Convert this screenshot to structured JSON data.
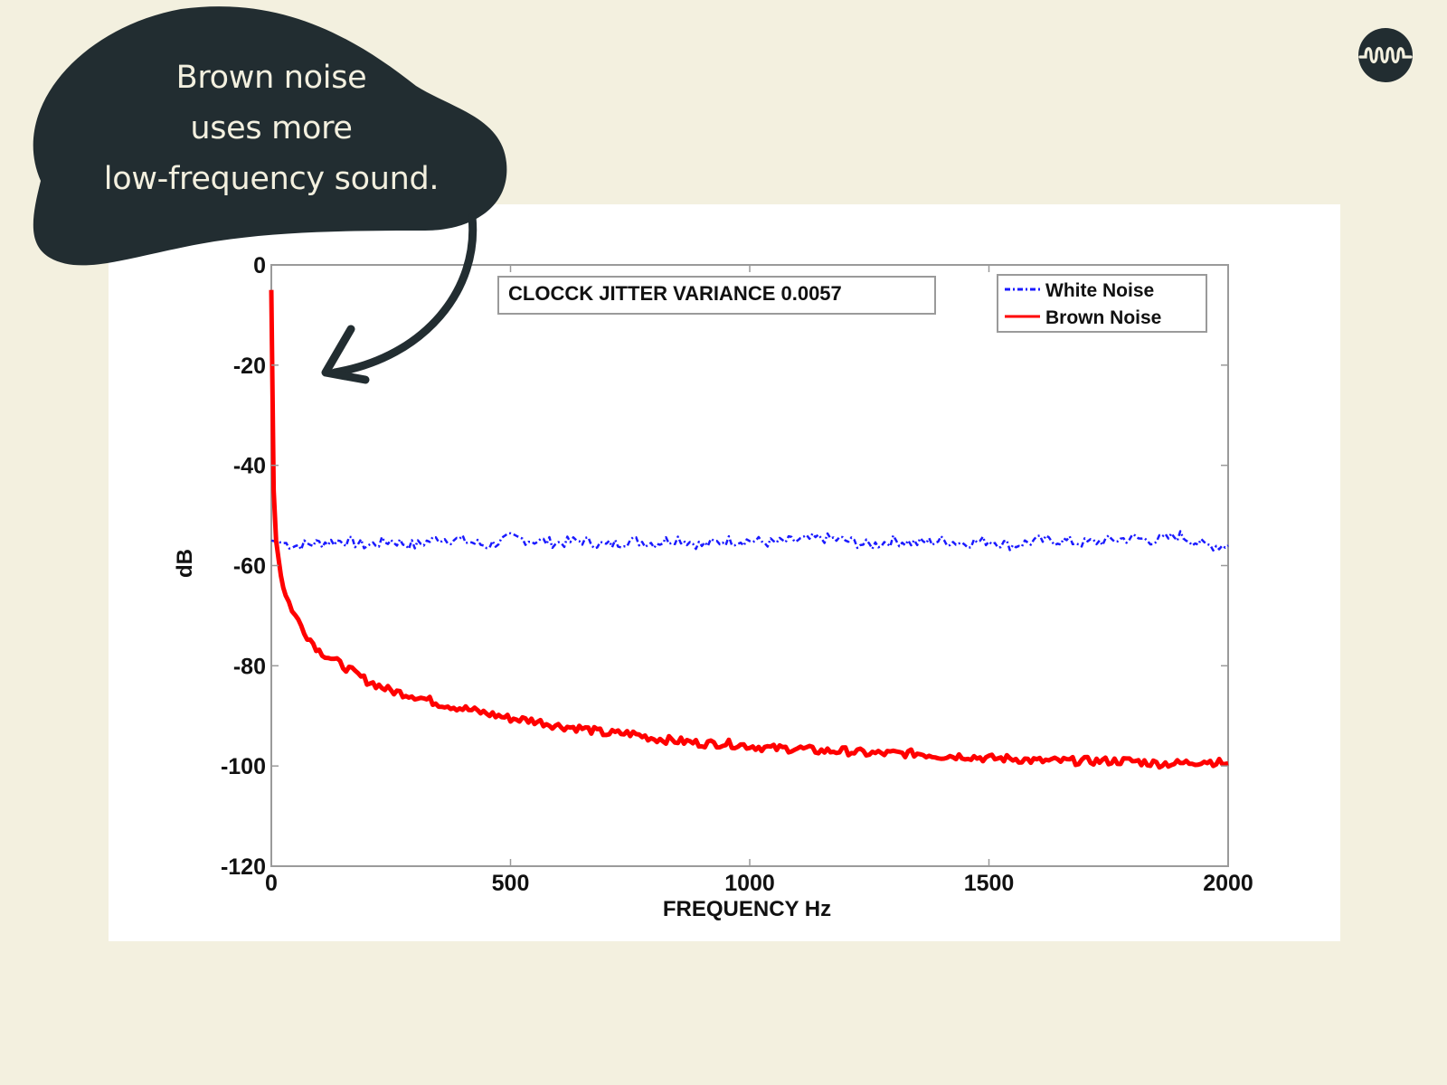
{
  "callout": {
    "lines": [
      "Brown noise",
      "uses more",
      "low-frequency sound."
    ],
    "bubble_color": "#222d31",
    "text_color": "#f3f0df"
  },
  "logo": {
    "icon": "sound-wave-icon",
    "color": "#222d31"
  },
  "colors": {
    "background": "#f3f0df",
    "card": "#ffffff",
    "white_noise": "#1a1aff",
    "brown_noise": "#ff0000",
    "axis": "#9a9a9a"
  },
  "chart_data": {
    "type": "line",
    "title": "CLOCCK JITTER VARIANCE 0.0057",
    "xlabel": "FREQUENCY Hz",
    "ylabel": "dB",
    "xlim": [
      0,
      2000
    ],
    "ylim": [
      -120,
      0
    ],
    "xticks": [
      "0",
      "500",
      "1000",
      "1500",
      "2000"
    ],
    "yticks": [
      "0",
      "-20",
      "-40",
      "-60",
      "-80",
      "-100",
      "-120"
    ],
    "grid": false,
    "legend_position": "upper right",
    "series": [
      {
        "name": "White Noise",
        "style": "dash-dot",
        "color": "#1a1aff",
        "x": [
          0,
          50,
          100,
          150,
          200,
          250,
          300,
          350,
          400,
          450,
          500,
          550,
          600,
          650,
          700,
          750,
          800,
          850,
          900,
          950,
          1000,
          1050,
          1100,
          1150,
          1200,
          1250,
          1300,
          1350,
          1400,
          1450,
          1500,
          1550,
          1600,
          1650,
          1700,
          1750,
          1800,
          1850,
          1900,
          1950,
          2000
        ],
        "values": [
          -55,
          -56,
          -55.5,
          -55,
          -56,
          -55,
          -56,
          -54.5,
          -55,
          -56,
          -54.5,
          -55,
          -55.5,
          -55,
          -56,
          -55,
          -55.5,
          -54.5,
          -56,
          -55,
          -55,
          -55.5,
          -55,
          -54.5,
          -55,
          -56,
          -55,
          -55.5,
          -55,
          -55.5,
          -55,
          -56,
          -55,
          -55,
          -55.5,
          -55,
          -54.5,
          -55,
          -54,
          -56,
          -56
        ]
      },
      {
        "name": "Brown Noise",
        "style": "solid",
        "color": "#ff0000",
        "x": [
          0,
          5,
          10,
          20,
          30,
          50,
          75,
          100,
          150,
          200,
          250,
          300,
          350,
          400,
          450,
          500,
          550,
          600,
          650,
          700,
          750,
          800,
          850,
          900,
          950,
          1000,
          1050,
          1100,
          1150,
          1200,
          1250,
          1300,
          1350,
          1400,
          1450,
          1500,
          1550,
          1600,
          1650,
          1700,
          1750,
          1800,
          1850,
          1900,
          1950,
          2000
        ],
        "values": [
          -5,
          -45,
          -55,
          -62,
          -66,
          -70,
          -74,
          -77,
          -80,
          -83,
          -85,
          -86,
          -87.5,
          -88.5,
          -89.5,
          -90.5,
          -91,
          -92,
          -92.5,
          -93.5,
          -93.5,
          -94.5,
          -95,
          -95.5,
          -95.5,
          -96,
          -96.5,
          -96.5,
          -97,
          -97,
          -97.5,
          -97.5,
          -97.5,
          -98,
          -98,
          -98.5,
          -98.5,
          -99,
          -99,
          -99,
          -99,
          -99,
          -99.5,
          -99.5,
          -99,
          -99.5
        ]
      }
    ]
  }
}
